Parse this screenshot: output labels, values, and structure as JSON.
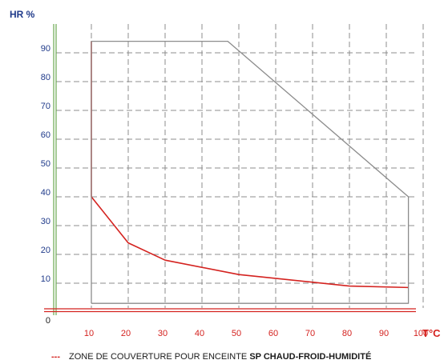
{
  "chart_data": {
    "type": "line",
    "ylabel": "HR %",
    "xlabel": "T°C",
    "xlim": [
      0,
      100
    ],
    "ylim": [
      0,
      100
    ],
    "x_ticks": [
      10,
      20,
      30,
      40,
      50,
      60,
      70,
      80,
      90,
      100
    ],
    "y_ticks": [
      0,
      10,
      20,
      30,
      40,
      50,
      60,
      70,
      80,
      90
    ],
    "grid": true,
    "series": [
      {
        "name": "ZONE DE COUVERTURE POUR ENCEINTE SP CHAUD-FROID-HUMIDITÉ",
        "color": "#d4221f",
        "points": [
          [
            10,
            94
          ],
          [
            10,
            40
          ],
          [
            20,
            24
          ],
          [
            30,
            18
          ],
          [
            50,
            13
          ],
          [
            80,
            9
          ],
          [
            96,
            8.5
          ]
        ]
      },
      {
        "name": "",
        "color": "#8c8c8c",
        "points": [
          [
            10,
            3
          ],
          [
            10,
            94
          ],
          [
            47,
            94
          ],
          [
            96,
            40
          ],
          [
            96,
            3
          ],
          [
            10,
            3
          ]
        ]
      }
    ]
  },
  "legend": {
    "marker": "---",
    "text_normal": "ZONE DE COUVERTURE POUR ENCEINTE ",
    "text_bold": "SP CHAUD-FROID-HUMIDITÉ"
  },
  "colors": {
    "axis_green": "#6aa84f",
    "grid": "#8c8c8c",
    "red": "#d4221f",
    "blue_labels": "#1f3a8a"
  }
}
